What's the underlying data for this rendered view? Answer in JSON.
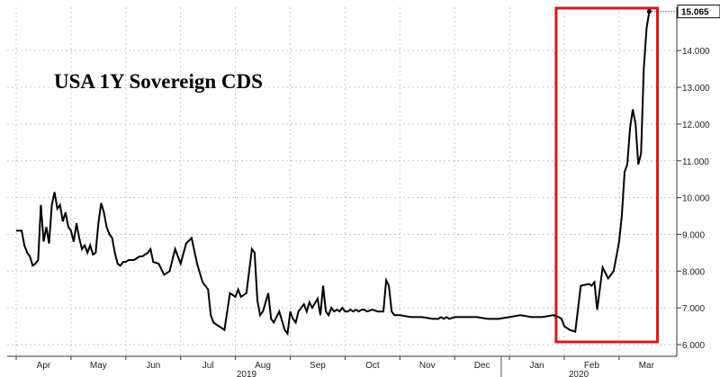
{
  "chart_data": {
    "type": "line",
    "title": "USA 1Y Sovereign CDS",
    "ylim": [
      6.0,
      15.4
    ],
    "y_ticks": [
      "6.000",
      "7.000",
      "8.000",
      "9.000",
      "10.000",
      "11.000",
      "12.000",
      "13.000",
      "14.000"
    ],
    "y_tick_values": [
      6,
      7,
      8,
      9,
      10,
      11,
      12,
      13,
      14
    ],
    "x_tick_labels": [
      "Apr",
      "May",
      "Jun",
      "Jul",
      "Aug",
      "Sep",
      "Oct",
      "Nov",
      "Dec",
      "Jan",
      "Feb",
      "Mar"
    ],
    "x_year_labels": [
      "2019",
      "2020"
    ],
    "last_value_label": "15.065",
    "grid": true,
    "highlight": {
      "x_start": 9.85,
      "x_end": 11.7,
      "color": "#d7191c"
    },
    "series": [
      {
        "values_x": [
          0.0,
          0.1,
          0.15,
          0.2,
          0.25,
          0.3,
          0.35,
          0.4,
          0.45,
          0.5,
          0.55,
          0.6,
          0.65,
          0.7,
          0.75,
          0.8,
          0.85,
          0.9,
          0.95,
          1.0,
          1.05,
          1.1,
          1.15,
          1.2,
          1.25,
          1.3,
          1.35,
          1.4,
          1.45,
          1.5,
          1.55,
          1.6,
          1.65,
          1.7,
          1.75,
          1.8,
          1.85,
          1.9,
          1.95,
          2.0,
          2.05,
          2.1,
          2.15,
          2.2,
          2.25,
          2.3,
          2.35,
          2.4,
          2.45,
          2.5,
          2.6,
          2.7,
          2.8,
          2.9,
          3.0,
          3.1,
          3.2,
          3.3,
          3.4,
          3.5,
          3.55,
          3.6,
          3.7,
          3.8,
          3.9,
          4.0,
          4.05,
          4.1,
          4.2,
          4.3,
          4.35,
          4.4,
          4.45,
          4.5,
          4.6,
          4.65,
          4.7,
          4.8,
          4.9,
          4.95,
          5.0,
          5.05,
          5.1,
          5.15,
          5.2,
          5.25,
          5.3,
          5.35,
          5.4,
          5.5,
          5.55,
          5.6,
          5.65,
          5.7,
          5.75,
          5.8,
          5.85,
          5.9,
          5.95,
          6.0,
          6.05,
          6.1,
          6.15,
          6.2,
          6.25,
          6.3,
          6.35,
          6.4,
          6.5,
          6.6,
          6.7,
          6.75,
          6.8,
          6.85,
          6.9,
          7.0,
          7.2,
          7.4,
          7.6,
          7.7,
          7.75,
          7.8,
          7.85,
          7.9,
          8.0,
          8.2,
          8.4,
          8.6,
          8.8,
          9.0,
          9.2,
          9.4,
          9.6,
          9.8,
          9.9,
          9.95,
          10.0,
          10.1,
          10.2,
          10.3,
          10.45,
          10.5,
          10.52,
          10.55,
          10.6,
          10.7,
          10.8,
          10.9,
          10.95,
          11.0,
          11.05,
          11.1,
          11.15,
          11.2,
          11.25,
          11.3,
          11.35,
          11.4,
          11.45,
          11.5,
          11.55
        ],
        "values_y": [
          9.1,
          9.1,
          8.7,
          8.5,
          8.4,
          8.15,
          8.2,
          8.3,
          9.8,
          8.8,
          9.2,
          8.75,
          9.8,
          10.15,
          9.7,
          9.8,
          9.35,
          9.6,
          9.2,
          9.1,
          8.8,
          9.3,
          8.9,
          8.6,
          8.7,
          8.5,
          8.7,
          8.45,
          8.5,
          9.3,
          9.85,
          9.6,
          9.2,
          9.0,
          8.9,
          8.5,
          8.2,
          8.15,
          8.25,
          8.25,
          8.3,
          8.3,
          8.3,
          8.35,
          8.4,
          8.4,
          8.45,
          8.5,
          8.6,
          8.25,
          8.2,
          7.9,
          8.0,
          8.6,
          8.2,
          8.75,
          8.9,
          8.2,
          7.7,
          7.5,
          6.8,
          6.6,
          6.5,
          6.4,
          7.4,
          7.3,
          7.5,
          7.3,
          7.4,
          8.6,
          8.5,
          7.2,
          6.8,
          6.9,
          7.4,
          6.7,
          6.6,
          6.9,
          6.4,
          6.3,
          6.9,
          6.7,
          6.6,
          6.9,
          7.0,
          7.1,
          6.9,
          7.15,
          7.0,
          7.25,
          6.8,
          7.6,
          6.9,
          6.8,
          7.0,
          6.9,
          6.95,
          6.9,
          7.0,
          6.9,
          6.9,
          6.95,
          6.9,
          6.95,
          6.9,
          6.95,
          6.95,
          6.9,
          6.95,
          6.9,
          6.9,
          7.75,
          7.6,
          6.9,
          6.8,
          6.8,
          6.75,
          6.75,
          6.7,
          6.7,
          6.75,
          6.7,
          6.75,
          6.7,
          6.75,
          6.75,
          6.75,
          6.7,
          6.7,
          6.75,
          6.8,
          6.75,
          6.75,
          6.8,
          6.75,
          6.7,
          6.5,
          6.4,
          6.35,
          7.6,
          7.65,
          7.6,
          7.65,
          7.7,
          6.95,
          8.1,
          7.8,
          8.0,
          8.4,
          8.8,
          9.5,
          10.7,
          10.9,
          11.9,
          12.4,
          12.0,
          10.9,
          11.2,
          13.5,
          14.6,
          15.065
        ]
      }
    ]
  }
}
